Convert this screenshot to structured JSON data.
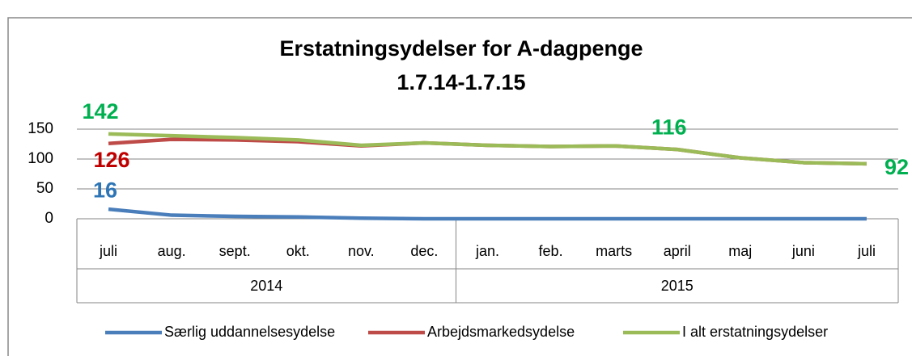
{
  "chart_data": {
    "type": "line",
    "title": "Erstatningsydelser for A-dagpenge",
    "subtitle": "1.7.14-1.7.15",
    "categories": [
      "juli",
      "aug.",
      "sept.",
      "okt.",
      "nov.",
      "dec.",
      "jan.",
      "feb.",
      "marts",
      "april",
      "maj",
      "juni",
      "juli"
    ],
    "category_groups": [
      {
        "label": "2014",
        "count": 6
      },
      {
        "label": "2015",
        "count": 7
      }
    ],
    "series": [
      {
        "name": "Særlig uddannelsesydelse",
        "color": "#4a7ebb",
        "label_color": "#2e75b6",
        "values": [
          16,
          6,
          4,
          3,
          1,
          0,
          0,
          0,
          0,
          0,
          0,
          0,
          0
        ],
        "value_labels": [
          "16",
          null,
          null,
          null,
          null,
          null,
          null,
          null,
          null,
          null,
          null,
          null,
          null
        ]
      },
      {
        "name": "Arbejdsmarkedsydelse",
        "color": "#be4b48",
        "label_color": "#c00000",
        "values": [
          126,
          133,
          132,
          129,
          122,
          127,
          123,
          121,
          122,
          116,
          102,
          94,
          92
        ],
        "value_labels": [
          "126",
          null,
          null,
          null,
          null,
          null,
          null,
          null,
          null,
          null,
          null,
          null,
          null
        ]
      },
      {
        "name": "I alt erstatningsydelser",
        "color": "#9bbb59",
        "label_color": "#00b050",
        "values": [
          142,
          139,
          136,
          132,
          123,
          127,
          123,
          121,
          122,
          116,
          102,
          94,
          92
        ],
        "value_labels": [
          "142",
          null,
          null,
          null,
          null,
          null,
          null,
          null,
          null,
          "116",
          null,
          null,
          "92"
        ]
      }
    ],
    "ylim": [
      0,
      150
    ],
    "yticks": [
      0,
      50,
      100,
      150
    ],
    "grid": true,
    "legend": "bottom"
  }
}
